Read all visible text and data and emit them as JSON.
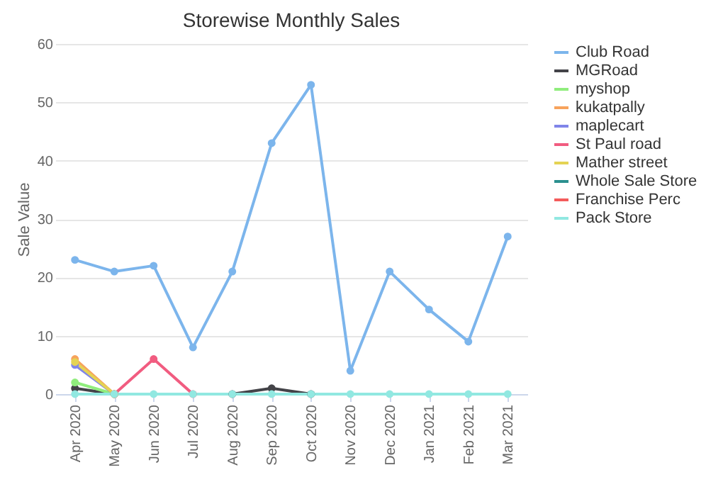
{
  "chart_data": {
    "type": "line",
    "title": "Storewise Monthly Sales",
    "ylabel": "Sale Value",
    "categories": [
      "Apr 2020",
      "May 2020",
      "Jun 2020",
      "Jul 2020",
      "Aug 2020",
      "Sep 2020",
      "Oct 2020",
      "Nov 2020",
      "Dec 2020",
      "Jan 2021",
      "Feb 2021",
      "Mar 2021"
    ],
    "ylim": [
      0,
      60
    ],
    "yticks": [
      0,
      10,
      20,
      30,
      40,
      50,
      60
    ],
    "grid": "y",
    "legend": "right",
    "marker": "circle",
    "line_style": "solid",
    "series": [
      {
        "name": "Club Road",
        "color": "#7cb5ec",
        "values": [
          23,
          21,
          22,
          8,
          21,
          43,
          53,
          4,
          21,
          14.5,
          9,
          27
        ]
      },
      {
        "name": "MGRoad",
        "color": "#434348",
        "values": [
          1,
          0,
          null,
          null,
          0,
          1,
          0,
          null,
          null,
          null,
          null,
          null
        ]
      },
      {
        "name": "myshop",
        "color": "#90ed7d",
        "values": [
          2,
          0,
          null,
          null,
          null,
          null,
          null,
          null,
          null,
          null,
          null,
          null
        ]
      },
      {
        "name": "kukatpally",
        "color": "#f7a35c",
        "values": [
          6,
          0,
          null,
          null,
          null,
          null,
          null,
          null,
          null,
          null,
          null,
          null
        ]
      },
      {
        "name": "maplecart",
        "color": "#8085e9",
        "values": [
          5,
          0,
          null,
          null,
          null,
          null,
          null,
          null,
          null,
          null,
          null,
          null
        ]
      },
      {
        "name": "St Paul road",
        "color": "#f15c80",
        "values": [
          null,
          0,
          6,
          0,
          null,
          null,
          null,
          null,
          null,
          null,
          null,
          null
        ]
      },
      {
        "name": "Mather street",
        "color": "#e4d354",
        "values": [
          5.5,
          0,
          null,
          null,
          null,
          null,
          null,
          null,
          null,
          null,
          null,
          null
        ]
      },
      {
        "name": "Whole Sale Store",
        "color": "#2b908f",
        "values": [
          null,
          null,
          null,
          null,
          null,
          null,
          null,
          null,
          null,
          null,
          null,
          null
        ]
      },
      {
        "name": "Franchise Perc",
        "color": "#f45b5b",
        "values": [
          null,
          null,
          null,
          null,
          null,
          null,
          null,
          null,
          null,
          null,
          null,
          null
        ]
      },
      {
        "name": "Pack Store",
        "color": "#91e8e1",
        "values": [
          0,
          0,
          0,
          0,
          0,
          0,
          0,
          0,
          0,
          0,
          0,
          0
        ]
      }
    ]
  }
}
